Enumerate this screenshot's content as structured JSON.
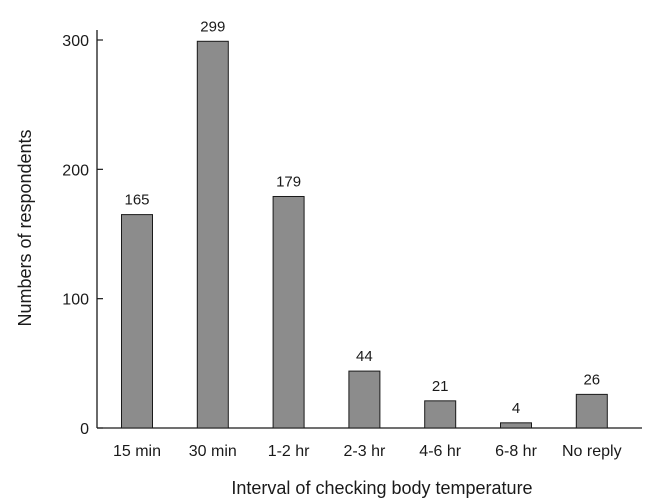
{
  "chart_data": {
    "type": "bar",
    "categories": [
      "15 min",
      "30 min",
      "1-2 hr",
      "2-3 hr",
      "4-6 hr",
      "6-8 hr",
      "No reply"
    ],
    "values": [
      165,
      299,
      179,
      44,
      21,
      4,
      26
    ],
    "data_labels": [
      "165",
      "299",
      "179",
      "44",
      "21",
      "4",
      "26"
    ],
    "title": "",
    "xlabel": "Interval of checking body temperature",
    "ylabel": "Numbers of respondents",
    "ylim": [
      0,
      300
    ],
    "yticks": [
      0,
      100,
      200,
      300
    ],
    "ytick_labels": [
      "0",
      "100",
      "200",
      "300"
    ],
    "grid": false,
    "bar_color": "#8c8c8c",
    "bar_edge_color": "#1a1a1a"
  }
}
